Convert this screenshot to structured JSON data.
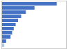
{
  "chart_data": {
    "type": "bar",
    "orientation": "horizontal",
    "categories": [
      null,
      null,
      null,
      null,
      null,
      null,
      null,
      null,
      null,
      null,
      null
    ],
    "values": [
      3.5,
      2.1,
      1.55,
      1.25,
      1.05,
      0.9,
      0.78,
      0.68,
      0.58,
      0.3,
      0.18
    ],
    "colors": [
      "#4472c4",
      "#4472c4",
      "#4472c4",
      "#4472c4",
      "#4472c4",
      "#4472c4",
      "#4472c4",
      "#4472c4",
      "#4472c4",
      "#4472c4",
      "#a8c8f0"
    ],
    "xlim": [
      0,
      4.1
    ],
    "tick_labels": false
  }
}
